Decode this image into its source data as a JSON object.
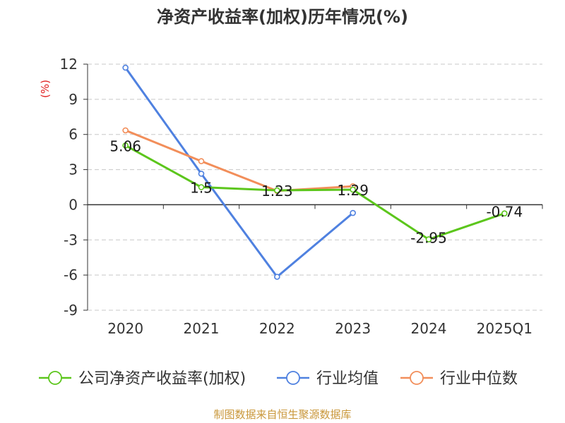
{
  "chart_data": {
    "type": "line",
    "title": "净资产收益率(加权)历年情况(%)",
    "ylabel": "(%)",
    "categories": [
      "2020",
      "2021",
      "2022",
      "2023",
      "2024",
      "2025Q1"
    ],
    "ylim": [
      -9,
      12
    ],
    "yticks": [
      12,
      9,
      6,
      3,
      0,
      -3,
      -6,
      -9
    ],
    "grid": true,
    "legend_position": "bottom",
    "series": [
      {
        "name": "公司净资产收益率(加权)",
        "color": "#5cc61c",
        "values": [
          5.06,
          1.5,
          1.23,
          1.29,
          -2.95,
          -0.74
        ],
        "labels": [
          "5.06",
          "1.5",
          "1.23",
          "1.29",
          "-2.95",
          "-0.74"
        ]
      },
      {
        "name": "行业均值",
        "color": "#4f81e0",
        "values": [
          11.7,
          2.65,
          -6.15,
          -0.7,
          null,
          null
        ]
      },
      {
        "name": "行业中位数",
        "color": "#f28e5a",
        "values": [
          6.35,
          3.72,
          1.18,
          1.58,
          null,
          null
        ]
      }
    ]
  },
  "source": "制图数据来自恒生聚源数据库"
}
